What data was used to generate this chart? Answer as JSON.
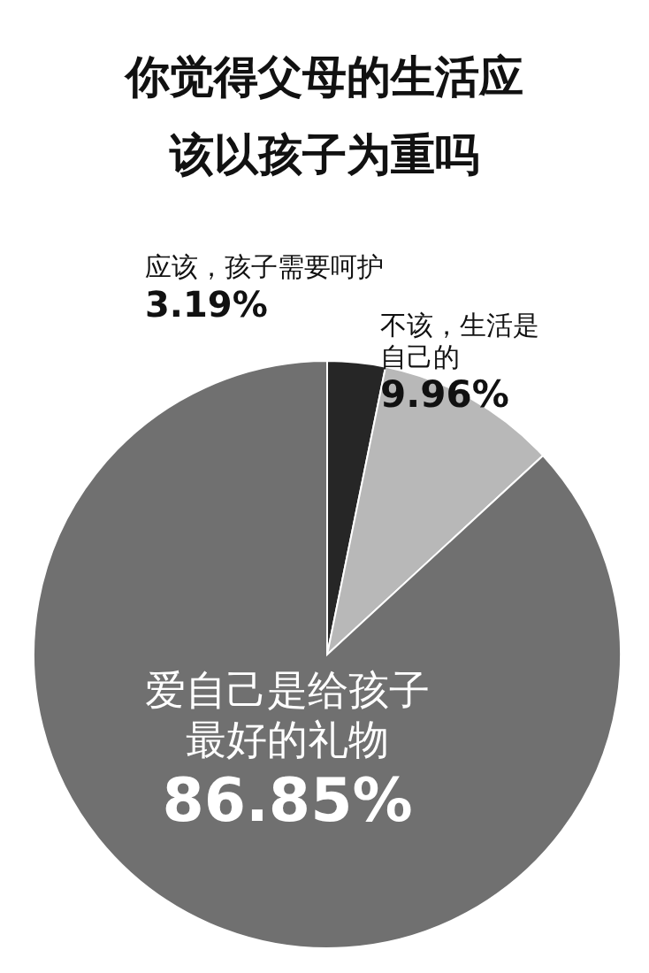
{
  "chart_data": {
    "type": "pie",
    "title": "你觉得父母的生活应该以孩子为重吗",
    "categories": [
      "应该，孩子需要呵护",
      "不该，生活是自己的",
      "爱自己是给孩子最好的礼物"
    ],
    "values": [
      3.19,
      9.96,
      86.85
    ],
    "colors": [
      "#262626",
      "#b8b8b8",
      "#707070"
    ],
    "value_labels": [
      "3.19%",
      "9.96%",
      "86.85%"
    ]
  }
}
